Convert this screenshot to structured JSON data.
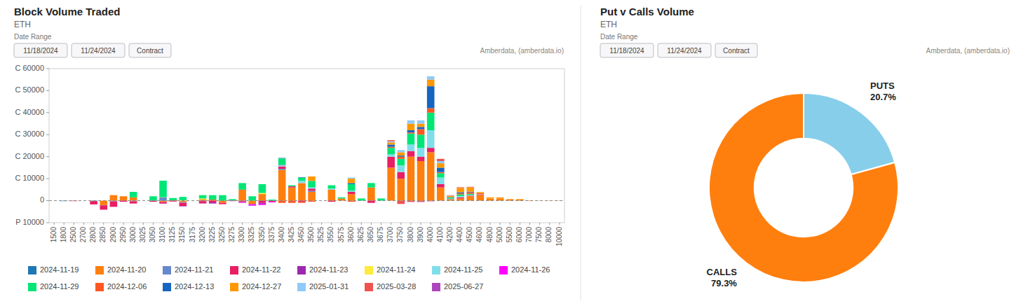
{
  "chart_data": [
    {
      "type": "bar",
      "stacked": true,
      "title": "Block Volume Traded",
      "subtitle": "ETH",
      "annotations": [
        "Date Range",
        "11/18/2024",
        "11/24/2024",
        "Contract",
        "Amberdata, (amberdata.io)"
      ],
      "categories": [
        "1500",
        "1800",
        "2500",
        "2700",
        "2800",
        "2850",
        "2900",
        "2950",
        "3000",
        "3025",
        "3050",
        "3100",
        "3125",
        "3150",
        "3175",
        "3200",
        "3225",
        "3250",
        "3275",
        "3300",
        "3325",
        "3350",
        "3375",
        "3400",
        "3425",
        "3450",
        "3500",
        "3525",
        "3550",
        "3575",
        "3600",
        "3625",
        "3650",
        "3675",
        "3700",
        "3750",
        "3800",
        "3900",
        "4000",
        "4100",
        "4200",
        "4400",
        "4500",
        "4600",
        "4800",
        "5000",
        "5500",
        "6000",
        "7000",
        "7500",
        "8000",
        "10000"
      ],
      "series": [
        {
          "name": "2024-11-19",
          "color": "#1f77b4",
          "values": [
            null,
            -200,
            null,
            null,
            -200,
            null,
            -200,
            null,
            -100,
            null,
            null,
            -100,
            null,
            null,
            null,
            null,
            null,
            null,
            null,
            null,
            null,
            null,
            null,
            null,
            null,
            null,
            null,
            null,
            null,
            null,
            null,
            null,
            null,
            null,
            null,
            null,
            null,
            null,
            null,
            null,
            null,
            null,
            null,
            null,
            null,
            null,
            null,
            null,
            null,
            null,
            null,
            null
          ]
        },
        {
          "name": "2024-11-20",
          "color": "#ff7f0e",
          "values": [
            null,
            null,
            null,
            null,
            null,
            -2000,
            2500,
            2000,
            1500,
            null,
            null,
            -500,
            200,
            -600,
            null,
            500,
            500,
            -1000,
            200,
            5000,
            -1500,
            3000,
            null,
            14000,
            6000,
            8000,
            4000,
            null,
            5000,
            1000,
            3000,
            null,
            6000,
            null,
            15000,
            10000,
            20000,
            18000,
            22000,
            6000,
            500,
            1000,
            2000,
            2500,
            1000,
            1000,
            500,
            500,
            200,
            100,
            100,
            50
          ]
        },
        {
          "name": "2024-11-21",
          "color": "#6688cc",
          "values": [
            null,
            null,
            null,
            null,
            null,
            -100,
            -100,
            null,
            -200,
            null,
            null,
            1500,
            null,
            -300,
            null,
            -200,
            null,
            null,
            null,
            -200,
            null,
            null,
            null,
            500,
            null,
            null,
            500,
            null,
            null,
            null,
            null,
            null,
            null,
            null,
            null,
            null,
            null,
            null,
            null,
            null,
            null,
            null,
            null,
            null,
            null,
            null,
            null,
            null,
            null,
            null,
            null,
            null
          ]
        },
        {
          "name": "2024-11-22",
          "color": "#e91e63",
          "values": [
            null,
            null,
            -200,
            null,
            -1500,
            -2000,
            -2500,
            -500,
            -1000,
            null,
            -500,
            -700,
            -400,
            -1500,
            null,
            -1000,
            -800,
            -600,
            null,
            -500,
            null,
            -1000,
            -500,
            1000,
            500,
            -500,
            1000,
            null,
            -500,
            null,
            1000,
            null,
            -1000,
            null,
            5000,
            3000,
            2500,
            2000,
            2000,
            1500,
            200,
            500,
            300,
            200,
            null,
            null,
            null,
            null,
            null,
            null,
            null,
            null
          ]
        },
        {
          "name": "2024-11-23",
          "color": "#9c27b0",
          "values": [
            null,
            null,
            null,
            null,
            null,
            null,
            null,
            null,
            null,
            null,
            null,
            -100,
            null,
            -200,
            null,
            -100,
            -500,
            null,
            -200,
            -100,
            -300,
            -500,
            null,
            null,
            null,
            null,
            null,
            null,
            null,
            null,
            null,
            null,
            null,
            null,
            null,
            null,
            null,
            null,
            null,
            null,
            null,
            null,
            null,
            null,
            null,
            null,
            null,
            null,
            null,
            null,
            null,
            null
          ]
        },
        {
          "name": "2024-11-24",
          "color": "#ffeb3b",
          "values": [
            null,
            null,
            null,
            null,
            null,
            null,
            null,
            null,
            null,
            null,
            null,
            100,
            null,
            200,
            null,
            500,
            null,
            null,
            null,
            null,
            null,
            500,
            null,
            null,
            null,
            null,
            null,
            null,
            null,
            null,
            null,
            null,
            null,
            null,
            null,
            null,
            null,
            null,
            null,
            null,
            null,
            null,
            null,
            null,
            null,
            null,
            null,
            null,
            null,
            null,
            null,
            null
          ]
        },
        {
          "name": "2024-11-25",
          "color": "#80deea",
          "values": [
            null,
            null,
            null,
            null,
            null,
            null,
            null,
            null,
            null,
            null,
            null,
            null,
            null,
            null,
            null,
            null,
            null,
            null,
            null,
            null,
            null,
            null,
            null,
            500,
            null,
            1000,
            500,
            null,
            500,
            null,
            500,
            null,
            null,
            null,
            1000,
            3000,
            3000,
            4000,
            8000,
            3000,
            200,
            500,
            300,
            200,
            null,
            null,
            null,
            null,
            null,
            null,
            null,
            null
          ]
        },
        {
          "name": "2024-11-26",
          "color": "#ff00ff",
          "values": [
            null,
            null,
            null,
            null,
            null,
            null,
            null,
            null,
            null,
            null,
            null,
            null,
            null,
            null,
            null,
            null,
            null,
            null,
            null,
            -200,
            -500,
            -500,
            -300,
            200,
            null,
            null,
            null,
            null,
            null,
            null,
            null,
            null,
            null,
            null,
            null,
            null,
            null,
            null,
            null,
            null,
            null,
            null,
            null,
            null,
            null,
            null,
            null,
            null,
            null,
            null,
            null,
            null
          ]
        },
        {
          "name": "2024-11-29",
          "color": "#00e676",
          "values": [
            null,
            null,
            null,
            null,
            null,
            null,
            null,
            null,
            2500,
            null,
            2000,
            7500,
            1000,
            1500,
            null,
            1500,
            2000,
            2500,
            500,
            3000,
            2000,
            4000,
            500,
            3000,
            500,
            1500,
            3000,
            null,
            1500,
            500,
            3000,
            1000,
            2000,
            1000,
            3000,
            3000,
            5000,
            6000,
            8000,
            2000,
            500,
            800,
            500,
            null,
            null,
            null,
            null,
            null,
            null,
            null,
            null,
            null
          ]
        },
        {
          "name": "2024-12-06",
          "color": "#ff5722",
          "values": [
            null,
            null,
            null,
            null,
            null,
            null,
            null,
            null,
            null,
            null,
            null,
            null,
            null,
            null,
            null,
            null,
            null,
            null,
            null,
            null,
            null,
            null,
            null,
            -1000,
            -1000,
            -500,
            -500,
            null,
            null,
            null,
            -500,
            null,
            null,
            null,
            500,
            1000,
            500,
            2500,
            2000,
            500,
            null,
            500,
            700,
            500,
            null,
            null,
            null,
            null,
            null,
            null,
            null,
            null
          ]
        },
        {
          "name": "2024-12-13",
          "color": "#1565c0",
          "values": [
            null,
            null,
            null,
            null,
            null,
            null,
            null,
            null,
            null,
            null,
            null,
            null,
            null,
            null,
            null,
            null,
            null,
            null,
            null,
            null,
            null,
            null,
            null,
            200,
            null,
            200,
            null,
            null,
            null,
            null,
            500,
            null,
            null,
            null,
            1000,
            500,
            1000,
            1000,
            10000,
            2000,
            200,
            500,
            300,
            null,
            null,
            null,
            null,
            null,
            null,
            null,
            null,
            null
          ]
        },
        {
          "name": "2024-12-27",
          "color": "#ff9800",
          "values": [
            null,
            null,
            null,
            null,
            null,
            null,
            null,
            null,
            null,
            null,
            null,
            null,
            null,
            null,
            null,
            null,
            null,
            null,
            null,
            null,
            null,
            null,
            null,
            null,
            null,
            null,
            2000,
            null,
            null,
            null,
            2000,
            null,
            null,
            null,
            1000,
            1500,
            3000,
            1500,
            3000,
            2000,
            500,
            2000,
            2000,
            500,
            500,
            500,
            200,
            200,
            null,
            null,
            null,
            null
          ]
        },
        {
          "name": "2025-01-31",
          "color": "#90caf9",
          "values": [
            null,
            null,
            null,
            null,
            null,
            null,
            null,
            null,
            null,
            null,
            null,
            null,
            null,
            null,
            null,
            null,
            null,
            null,
            null,
            null,
            null,
            null,
            null,
            null,
            null,
            null,
            null,
            null,
            null,
            null,
            500,
            null,
            null,
            null,
            500,
            1000,
            1500,
            1500,
            1500,
            1000,
            200,
            null,
            null,
            null,
            null,
            null,
            null,
            null,
            null,
            null,
            null,
            null
          ]
        },
        {
          "name": "2025-03-28",
          "color": "#ef5350",
          "values": [
            null,
            null,
            null,
            null,
            null,
            null,
            null,
            null,
            null,
            null,
            null,
            null,
            null,
            null,
            null,
            null,
            null,
            null,
            null,
            null,
            null,
            null,
            null,
            null,
            null,
            null,
            null,
            null,
            null,
            null,
            null,
            null,
            null,
            null,
            500,
            -1500,
            -500,
            -500,
            -200,
            1000,
            200,
            300,
            200,
            null,
            null,
            null,
            null,
            null,
            null,
            null,
            null,
            null
          ]
        },
        {
          "name": "2025-06-27",
          "color": "#ab47bc",
          "values": [
            null,
            null,
            null,
            null,
            null,
            null,
            null,
            null,
            null,
            null,
            null,
            null,
            null,
            null,
            null,
            null,
            null,
            null,
            null,
            null,
            null,
            null,
            null,
            null,
            null,
            null,
            null,
            null,
            null,
            null,
            null,
            null,
            null,
            null,
            null,
            null,
            -100,
            -100,
            -100,
            null,
            null,
            null,
            null,
            null,
            null,
            null,
            null,
            null,
            null,
            null,
            null,
            -50
          ]
        }
      ],
      "ylim": [
        -10000,
        60000
      ],
      "yticks": [
        {
          "value": -10000,
          "label": "P 10000"
        },
        0,
        {
          "value": 10000,
          "label": "C 10000"
        },
        {
          "value": 20000,
          "label": "C 20000"
        },
        {
          "value": 30000,
          "label": "C 30000"
        },
        {
          "value": 40000,
          "label": "C 40000"
        },
        {
          "value": 50000,
          "label": "C 50000"
        },
        {
          "value": 60000,
          "label": "C 60000"
        }
      ],
      "grid": false,
      "legend": "bottom"
    },
    {
      "type": "donut",
      "title": "Put v Calls Volume",
      "subtitle": "ETH",
      "annotations": [
        "Date Range",
        "11/18/2024",
        "11/24/2024",
        "Contract",
        "Amberdata, (amberdata.io)"
      ],
      "categories": [
        "PUTS",
        "CALLS"
      ],
      "values": [
        20.7,
        79.3
      ],
      "value_labels": [
        "20.7%",
        "79.3%"
      ],
      "colors": [
        "#87CEEB",
        "#ff7f0e"
      ],
      "data_labels": true
    }
  ]
}
